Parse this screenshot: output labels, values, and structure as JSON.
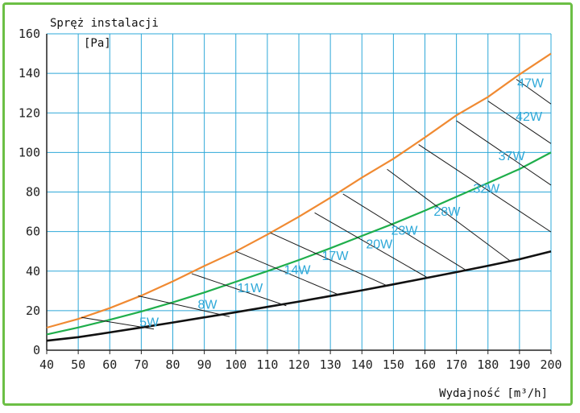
{
  "chart_data": {
    "type": "line",
    "ylabel": "Spręż instalacji",
    "yunit": "[Pa]",
    "xlabel": "Wydajność [m³/h]",
    "xlim": [
      40,
      200
    ],
    "ylim": [
      0,
      160
    ],
    "xticks": [
      40,
      50,
      60,
      70,
      80,
      90,
      100,
      110,
      120,
      130,
      140,
      150,
      160,
      170,
      180,
      190,
      200
    ],
    "yticks": [
      0,
      20,
      40,
      60,
      80,
      100,
      120,
      140,
      160
    ],
    "grid": true,
    "colors": {
      "grid": "#2ea8d8",
      "upper": "#f08a32",
      "middle": "#1fae4b",
      "lower": "#111111",
      "labels": "#2ea8d8",
      "border": "#6cbf45"
    },
    "series": [
      {
        "color": "#f08a32",
        "x": [
          40,
          50,
          60,
          70,
          80,
          90,
          100,
          110,
          120,
          130,
          140,
          150,
          160,
          170,
          180,
          190,
          200
        ],
        "values": [
          11.4,
          15.8,
          21.3,
          27.6,
          34.8,
          42.6,
          50.0,
          58.5,
          67.5,
          77.1,
          87.3,
          96.8,
          107.6,
          118.8,
          128.1,
          139.5,
          150.0
        ]
      },
      {
        "color": "#1fae4b",
        "x": [
          40,
          50,
          60,
          70,
          80,
          90,
          100,
          110,
          120,
          130,
          140,
          150,
          160,
          170,
          180,
          190,
          200
        ],
        "values": [
          8.0,
          11.5,
          15.4,
          19.6,
          24.2,
          29.2,
          34.6,
          40.0,
          45.6,
          51.6,
          57.8,
          64.0,
          70.6,
          77.6,
          84.6,
          91.6,
          100.0
        ]
      },
      {
        "color": "#111111",
        "x": [
          40,
          50,
          60,
          70,
          80,
          90,
          100,
          110,
          120,
          130,
          140,
          150,
          160,
          170,
          180,
          190,
          200
        ],
        "values": [
          4.8,
          6.6,
          9.0,
          11.5,
          14.0,
          16.6,
          19.2,
          21.9,
          24.6,
          27.4,
          30.3,
          33.3,
          36.4,
          39.5,
          42.7,
          46.0,
          50.0
        ]
      }
    ],
    "power_lines": [
      {
        "x1": 51,
        "y1": 16.6,
        "x2": 74,
        "y2": 10.7
      },
      {
        "x1": 69,
        "y1": 27.5,
        "x2": 98,
        "y2": 17.0
      },
      {
        "x1": 86,
        "y1": 38.7,
        "x2": 116,
        "y2": 22.5
      },
      {
        "x1": 100,
        "y1": 50.0,
        "x2": 133,
        "y2": 27.8
      },
      {
        "x1": 111,
        "y1": 59.3,
        "x2": 148,
        "y2": 32.6
      },
      {
        "x1": 125,
        "y1": 69.5,
        "x2": 161,
        "y2": 36.5
      },
      {
        "x1": 134,
        "y1": 79.0,
        "x2": 173,
        "y2": 40.5
      },
      {
        "x1": 148,
        "y1": 91.5,
        "x2": 187,
        "y2": 45.2
      },
      {
        "x1": 158,
        "y1": 104.0,
        "x2": 200,
        "y2": 59.8
      },
      {
        "x1": 170,
        "y1": 116.0,
        "x2": 200,
        "y2": 83.5
      },
      {
        "x1": 180,
        "y1": 126.0,
        "x2": 200,
        "y2": 104.5
      },
      {
        "x1": 189,
        "y1": 137.0,
        "x2": 200,
        "y2": 124.5
      }
    ],
    "power_labels": [
      {
        "text": "5W",
        "x": 72.5,
        "y": 12.0
      },
      {
        "text": "8W",
        "x": 91.0,
        "y": 21.0
      },
      {
        "text": "11W",
        "x": 104.5,
        "y": 29.3
      },
      {
        "text": "14W",
        "x": 119.5,
        "y": 38.5
      },
      {
        "text": "17W",
        "x": 131.5,
        "y": 45.5
      },
      {
        "text": "20W",
        "x": 145.5,
        "y": 51.5
      },
      {
        "text": "23W",
        "x": 153.5,
        "y": 58.5
      },
      {
        "text": "28W",
        "x": 167.0,
        "y": 68.0
      },
      {
        "text": "32W",
        "x": 179.5,
        "y": 79.5
      },
      {
        "text": "37W",
        "x": 187.5,
        "y": 96.0
      },
      {
        "text": "42W",
        "x": 193.0,
        "y": 116.0
      },
      {
        "text": "47W",
        "x": 193.5,
        "y": 133.0
      }
    ]
  }
}
